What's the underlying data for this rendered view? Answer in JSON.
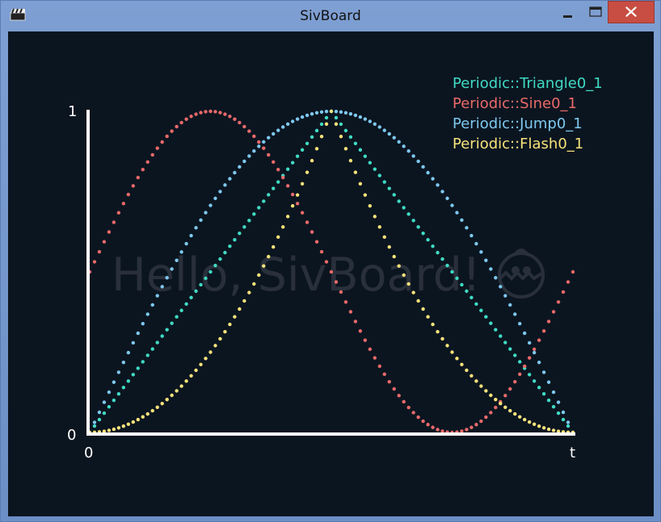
{
  "window": {
    "title": "SivBoard"
  },
  "canvas": {
    "background": "#0b1520",
    "watermark": "Hello, SivBoard!"
  },
  "chart_data": {
    "type": "scatter",
    "title": "",
    "xlabel": "t",
    "ylabel": "",
    "x_tick_labels": [
      "0",
      "t"
    ],
    "y_tick_labels": [
      "0",
      "1"
    ],
    "xlim": [
      0,
      1
    ],
    "ylim": [
      0,
      1
    ],
    "grid": false,
    "legend_position": "top-right",
    "samples": 101,
    "series": [
      {
        "name": "Periodic::Triangle0_1",
        "color": "#40dbc4",
        "period": 1.0,
        "phase": 0.0
      },
      {
        "name": "Periodic::Sine0_1",
        "color": "#ea6a6a",
        "period": 1.0,
        "phase": 0.0
      },
      {
        "name": "Periodic::Jump0_1",
        "color": "#7ec8ee",
        "period": 1.0,
        "phase": 0.0
      },
      {
        "name": "Periodic::Flash0_1",
        "color": "#f6e27a",
        "period": 1.0,
        "phase": 0.0
      }
    ]
  }
}
